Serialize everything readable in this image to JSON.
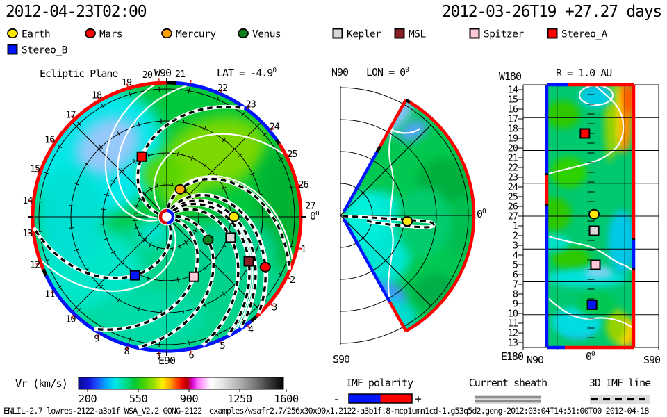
{
  "header": {
    "current_time": "2012-04-23T02:00",
    "reference_time": "2012-03-26T19  +27.27 days"
  },
  "panels": {
    "ecliptic": {
      "title": "Ecliptic Plane",
      "top_label": "W90",
      "bottom_label": "E90",
      "lat_label": "LAT = -4.9",
      "lat_sup": "0",
      "zero_label": "0",
      "zero_sup": "0"
    },
    "meridional": {
      "top_label": "N90",
      "bottom_label": "S90",
      "lon_label": "LON = 0",
      "lon_sup": "0",
      "zero_label": "0",
      "zero_sup": "0"
    },
    "radial": {
      "title": "R = 1.0 AU",
      "top_left_label": "W180",
      "bottom_left_label": "E180",
      "x_labels": [
        "N90",
        "S90"
      ],
      "x_zero": "0",
      "x_zero_sup": "0"
    }
  },
  "colorbar": {
    "title": "Vr (km/s)",
    "ticks": [
      "200",
      "550",
      "900",
      "1250",
      "1600"
    ]
  },
  "keys": {
    "imf_label": "IMF polarity",
    "minus": "-",
    "plus": "+",
    "sheath_label": "Current sheath",
    "imf_line_label": "3D IMF line"
  },
  "footer": {
    "run_info": "ENLIL-2.7 lowres-2122-a3b1f WSA_V2.2 GONG-2122",
    "path_info": "examples/wsafr2.7/256x30x90x1.2122-a3b1f.8-mcp1umn1cd-1.g53q5d2.gong-2012:03:04T14:51:00T00 2012-04-18"
  },
  "chart_data": {
    "type": "heatmap",
    "title": "WSA-ENLIL heliospheric solar wind radial velocity forecast",
    "quantity": "Vr (km/s)",
    "colorbar_range": [
      200,
      1600
    ],
    "colorbar_ticks": [
      200,
      550,
      900,
      1250,
      1600
    ],
    "observed_lat_deg": -4.9,
    "carrington_ring_labels": [
      "1",
      "2",
      "3",
      "4",
      "5",
      "6",
      "7",
      "8",
      "9",
      "10",
      "11",
      "12",
      "13",
      "14",
      "15",
      "16",
      "17",
      "18",
      "19",
      "20",
      "21",
      "22",
      "23",
      "24",
      "25",
      "26",
      "27"
    ],
    "radial_row_labels": [
      "14",
      "15",
      "16",
      "17",
      "18",
      "19",
      "20",
      "21",
      "22",
      "23",
      "24",
      "25",
      "26",
      "27",
      "1",
      "2",
      "3",
      "4",
      "5",
      "6",
      "7",
      "8",
      "9",
      "10",
      "11",
      "12",
      "13"
    ],
    "objects": [
      {
        "name": "Earth",
        "marker": "circle",
        "color": "#FFE800",
        "ecliptic": {
          "r_au": 1.05,
          "angle_deg": 0
        },
        "meridional": {
          "r_au": 1.05,
          "lat_deg": -5
        },
        "radial": {
          "lat_deg": 4.2,
          "row": 13.3
        }
      },
      {
        "name": "Mars",
        "marker": "circle",
        "color": "#FF0000",
        "ecliptic": {
          "r_au": 1.73,
          "angle_deg": -27
        },
        "meridional": null,
        "radial": null
      },
      {
        "name": "Mercury",
        "marker": "circle",
        "color": "#FFA000",
        "ecliptic": {
          "r_au": 0.48,
          "angle_deg": 64
        },
        "meridional": null,
        "radial": null
      },
      {
        "name": "Venus",
        "marker": "circle",
        "color": "#0E7D1E",
        "ecliptic": {
          "r_au": 0.74,
          "angle_deg": -29
        },
        "meridional": null,
        "radial": null
      },
      {
        "name": "Kepler",
        "marker": "square",
        "color": "#D8D8D8",
        "ecliptic": {
          "r_au": 1.05,
          "angle_deg": -18
        },
        "meridional": null,
        "radial": {
          "lat_deg": 4.2,
          "row": 15.0
        }
      },
      {
        "name": "MSL",
        "marker": "square",
        "color": "#8C1E28",
        "ecliptic": {
          "r_au": 1.46,
          "angle_deg": -28.5
        },
        "meridional": null,
        "radial": null
      },
      {
        "name": "Spitzer",
        "marker": "square",
        "color": "#FFC8D7",
        "ecliptic": {
          "r_au": 1.03,
          "angle_deg": -65.5
        },
        "meridional": null,
        "radial": {
          "lat_deg": 6.0,
          "row": 18.5
        }
      },
      {
        "name": "Stereo_A",
        "marker": "square",
        "color": "#FF0000",
        "ecliptic": {
          "r_au": 1.02,
          "angle_deg": 112.5
        },
        "meridional": null,
        "radial": {
          "lat_deg": -8.0,
          "row": 5.0
        }
      },
      {
        "name": "Stereo_B",
        "marker": "square",
        "color": "#0014FF",
        "ecliptic": {
          "r_au": 1.04,
          "angle_deg": -118.5
        },
        "meridional": null,
        "radial": {
          "lat_deg": 1.5,
          "row": 22.6
        }
      }
    ]
  }
}
